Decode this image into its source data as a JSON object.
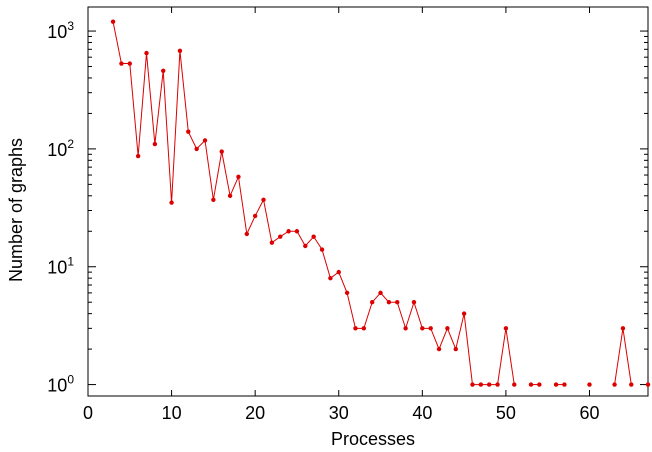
{
  "chart_data": {
    "type": "line",
    "title": "",
    "xlabel": "Processes",
    "ylabel": "Number of graphs",
    "xlim": [
      0,
      67
    ],
    "ylim": [
      0.8,
      1600
    ],
    "yscale": "log",
    "grid": false,
    "legend": "none",
    "x_ticks": [
      0,
      10,
      20,
      30,
      40,
      50,
      60
    ],
    "y_ticks": [
      {
        "value": 1,
        "base": "10",
        "exp": "0"
      },
      {
        "value": 10,
        "base": "10",
        "exp": "1"
      },
      {
        "value": 100,
        "base": "10",
        "exp": "2"
      },
      {
        "value": 1000,
        "base": "10",
        "exp": "3"
      }
    ],
    "color": "#dd0000",
    "series": [
      {
        "segments": [
          [
            [
              3,
              1200
            ],
            [
              4,
              530
            ],
            [
              5,
              530
            ],
            [
              6,
              87
            ],
            [
              7,
              650
            ],
            [
              8,
              110
            ],
            [
              9,
              460
            ],
            [
              10,
              35
            ],
            [
              11,
              680
            ],
            [
              12,
              140
            ],
            [
              13,
              100
            ],
            [
              14,
              118
            ],
            [
              15,
              37
            ],
            [
              16,
              95
            ],
            [
              17,
              40
            ],
            [
              18,
              58
            ],
            [
              19,
              19
            ],
            [
              20,
              27
            ],
            [
              21,
              37
            ],
            [
              22,
              16
            ],
            [
              23,
              18
            ],
            [
              24,
              20
            ],
            [
              25,
              20
            ],
            [
              26,
              15
            ],
            [
              27,
              18
            ],
            [
              28,
              14
            ],
            [
              29,
              8
            ],
            [
              30,
              9
            ],
            [
              31,
              6
            ],
            [
              32,
              3
            ],
            [
              33,
              3
            ],
            [
              34,
              5
            ],
            [
              35,
              6
            ],
            [
              36,
              5
            ],
            [
              37,
              5
            ],
            [
              38,
              3
            ],
            [
              39,
              5
            ],
            [
              40,
              3
            ],
            [
              41,
              3
            ],
            [
              42,
              2
            ],
            [
              43,
              3
            ],
            [
              44,
              2
            ],
            [
              45,
              4
            ],
            [
              46,
              1
            ],
            [
              47,
              1
            ],
            [
              48,
              1
            ],
            [
              49,
              1
            ],
            [
              50,
              3
            ],
            [
              51,
              1
            ]
          ],
          [
            [
              53,
              1
            ],
            [
              54,
              1
            ]
          ],
          [
            [
              56,
              1
            ],
            [
              57,
              1
            ]
          ],
          [
            [
              60,
              1
            ]
          ],
          [
            [
              63,
              1
            ],
            [
              64,
              3
            ],
            [
              65,
              1
            ]
          ],
          [
            [
              67,
              1
            ]
          ]
        ]
      }
    ]
  }
}
